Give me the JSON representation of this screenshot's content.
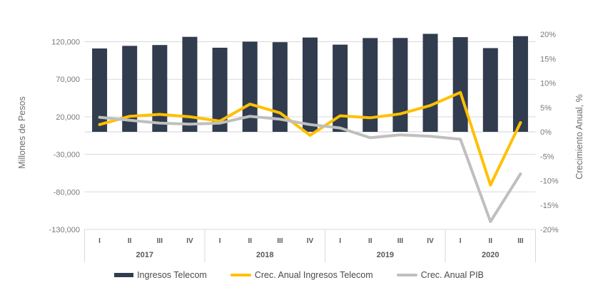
{
  "chart_data": {
    "type": "combo bar+line",
    "title": "",
    "years": [
      {
        "label": "2017",
        "quarters": [
          "I",
          "II",
          "III",
          "IV"
        ]
      },
      {
        "label": "2018",
        "quarters": [
          "I",
          "II",
          "III",
          "IV"
        ]
      },
      {
        "label": "2019",
        "quarters": [
          "I",
          "II",
          "III",
          "IV"
        ]
      },
      {
        "label": "2020",
        "quarters": [
          "I",
          "II",
          "III"
        ]
      }
    ],
    "series": [
      {
        "name": "Ingresos Telecom",
        "type": "bar",
        "axis": "left",
        "color": "#313C4E",
        "values": [
          111000,
          114500,
          115600,
          126500,
          112000,
          120100,
          119400,
          125600,
          116100,
          124900,
          125000,
          130500,
          126100,
          111500,
          127400
        ]
      },
      {
        "name": "Crec. Anual Ingresos Telecom",
        "type": "line",
        "axis": "right",
        "color": "#FFC000",
        "values": [
          1.5,
          3.2,
          3.6,
          3.1,
          2.2,
          5.7,
          3.9,
          -0.7,
          3.3,
          2.9,
          3.7,
          5.4,
          8.1,
          -10.9,
          1.9
        ]
      },
      {
        "name": "Crec. Anual PIB",
        "type": "line",
        "axis": "right",
        "color": "#BFBFBF",
        "values": [
          3.0,
          2.4,
          1.8,
          1.6,
          1.8,
          3.2,
          2.6,
          1.5,
          0.8,
          -1.2,
          -0.6,
          -0.9,
          -1.5,
          -18.4,
          -8.6
        ]
      }
    ],
    "left_axis": {
      "title": "Millones de Pesos",
      "min": -130000,
      "max": 137600,
      "ticks": [
        {
          "label": "120,000",
          "value": 120000
        },
        {
          "label": "70,000",
          "value": 70000
        },
        {
          "label": "20,000",
          "value": 20000
        },
        {
          "label": "-30,000",
          "value": -30000
        },
        {
          "label": "-80,000",
          "value": -80000
        },
        {
          "label": "-130,000",
          "value": -130000
        }
      ]
    },
    "right_axis": {
      "title": "Crecimiento Anual, %",
      "min": -20,
      "max": 21.2,
      "ticks": [
        {
          "label": "20%",
          "value": 20
        },
        {
          "label": "15%",
          "value": 15
        },
        {
          "label": "10%",
          "value": 10
        },
        {
          "label": "5%",
          "value": 5
        },
        {
          "label": "0%",
          "value": 0
        },
        {
          "label": "-5%",
          "value": -5
        },
        {
          "label": "-10%",
          "value": -10
        },
        {
          "label": "-15%",
          "value": -15
        },
        {
          "label": "-20%",
          "value": -20
        }
      ]
    },
    "legend_position": "bottom",
    "grid": true,
    "colors": {
      "gridline": "#D9D9D9",
      "zero_axis_line": "#D0D0D0",
      "tick_text": "#7a7a7a",
      "category_text": "#595959",
      "legend_text": "#4a4a4a"
    }
  }
}
